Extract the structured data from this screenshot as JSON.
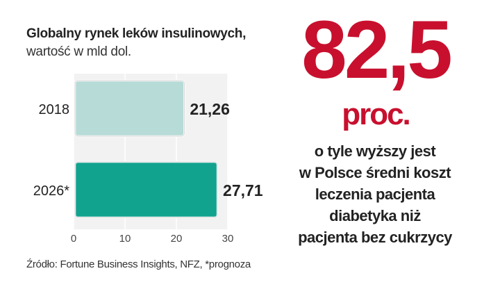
{
  "title": {
    "bold": "Globalny rynek leków insulinowych,",
    "light": "wartość w mld dol."
  },
  "highlight": {
    "number": "82,5",
    "unit": "proc.",
    "color": "#c8102e",
    "description_lines": [
      "o tyle wyższy jest",
      "w Polsce średni koszt",
      "leczenia pacjenta",
      "diabetyka niż",
      "pacjenta bez cukrzycy"
    ]
  },
  "source": "Źródło: Fortune Business Insights, NFZ, *prognoza",
  "chart_data": {
    "type": "bar",
    "orientation": "horizontal",
    "categories": [
      "2018",
      "2026*"
    ],
    "values": [
      21.26,
      27.71
    ],
    "value_labels": [
      "21,26",
      "27,71"
    ],
    "bar_colors": [
      "#b7dbd6",
      "#12a38f"
    ],
    "xlim": [
      0,
      30
    ],
    "xticks": [
      0,
      10,
      20,
      30
    ],
    "grid": true,
    "unit": "mld dol."
  }
}
